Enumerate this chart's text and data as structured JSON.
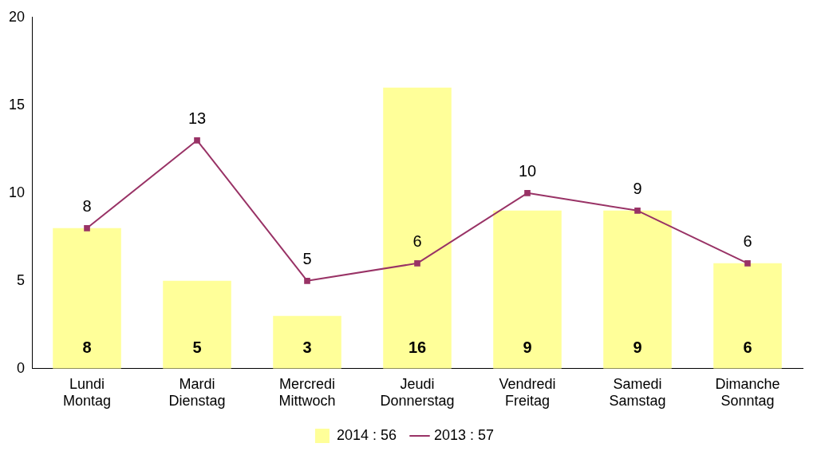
{
  "chart_data": {
    "type": "bar",
    "categories": [
      "Lundi\nMontag",
      "Mardi\nDienstag",
      "Mercredi\nMittwoch",
      "Jeudi\nDonnerstag",
      "Vendredi\nFreitag",
      "Samedi\nSamstag",
      "Dimanche\nSonntag"
    ],
    "series": [
      {
        "name": "2014 : 56",
        "color": "#ffff99",
        "values": [
          8,
          5,
          3,
          16,
          9,
          9,
          6
        ]
      },
      {
        "name": "2013 : 57",
        "type": "line",
        "color": "#993366",
        "values": [
          8,
          13,
          5,
          6,
          10,
          9,
          6
        ]
      }
    ],
    "ylim": [
      0,
      20
    ],
    "yticks": [
      0,
      5,
      10,
      15,
      20
    ],
    "grid": false,
    "legend": "bottom",
    "marker": "square",
    "data_labels": true
  }
}
